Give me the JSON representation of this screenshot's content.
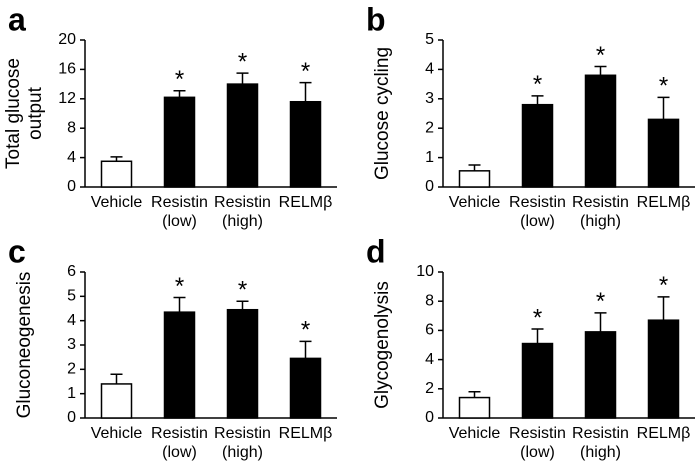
{
  "chart_data": [
    {
      "type": "bar",
      "panel_label": "a",
      "ylabel": [
        "Total glucose",
        "output"
      ],
      "categories": [
        [
          "Vehicle"
        ],
        [
          "Resistin",
          "(low)"
        ],
        [
          "Resistin",
          "(high)"
        ],
        [
          "RELMβ"
        ]
      ],
      "values": [
        3.5,
        12.2,
        14.0,
        11.6
      ],
      "errors": [
        0.6,
        0.9,
        1.5,
        2.6
      ],
      "colors": [
        "#ffffff",
        "#000000",
        "#000000",
        "#000000"
      ],
      "annotations": [
        null,
        "*",
        "*",
        "*"
      ],
      "ylim": [
        0,
        20
      ],
      "yticks": [
        0,
        4,
        8,
        12,
        16,
        20
      ]
    },
    {
      "type": "bar",
      "panel_label": "b",
      "ylabel": [
        "Glucose cycling"
      ],
      "categories": [
        [
          "Vehicle"
        ],
        [
          "Resistin",
          "(low)"
        ],
        [
          "Resistin",
          "(high)"
        ],
        [
          "RELMβ"
        ]
      ],
      "values": [
        0.55,
        2.8,
        3.8,
        2.3
      ],
      "errors": [
        0.2,
        0.3,
        0.3,
        0.75
      ],
      "colors": [
        "#ffffff",
        "#000000",
        "#000000",
        "#000000"
      ],
      "annotations": [
        null,
        "*",
        "*",
        "*"
      ],
      "ylim": [
        0,
        5
      ],
      "yticks": [
        0,
        1,
        2,
        3,
        4,
        5
      ]
    },
    {
      "type": "bar",
      "panel_label": "c",
      "ylabel": [
        "Gluconeogenesis"
      ],
      "categories": [
        [
          "Vehicle"
        ],
        [
          "Resistin",
          "(low)"
        ],
        [
          "Resistin",
          "(high)"
        ],
        [
          "RELMβ"
        ]
      ],
      "values": [
        1.4,
        4.35,
        4.45,
        2.45
      ],
      "errors": [
        0.4,
        0.6,
        0.35,
        0.7
      ],
      "colors": [
        "#ffffff",
        "#000000",
        "#000000",
        "#000000"
      ],
      "annotations": [
        null,
        "*",
        "*",
        "*"
      ],
      "ylim": [
        0,
        6
      ],
      "yticks": [
        0,
        1,
        2,
        3,
        4,
        5,
        6
      ]
    },
    {
      "type": "bar",
      "panel_label": "d",
      "ylabel": [
        "Glycogenolysis"
      ],
      "categories": [
        [
          "Vehicle"
        ],
        [
          "Resistin",
          "(low)"
        ],
        [
          "Resistin",
          "(high)"
        ],
        [
          "RELMβ"
        ]
      ],
      "values": [
        1.4,
        5.1,
        5.9,
        6.7
      ],
      "errors": [
        0.4,
        1.0,
        1.3,
        1.6
      ],
      "colors": [
        "#ffffff",
        "#000000",
        "#000000",
        "#000000"
      ],
      "annotations": [
        null,
        "*",
        "*",
        "*"
      ],
      "ylim": [
        0,
        10
      ],
      "yticks": [
        0,
        2,
        4,
        6,
        8,
        10
      ]
    }
  ]
}
